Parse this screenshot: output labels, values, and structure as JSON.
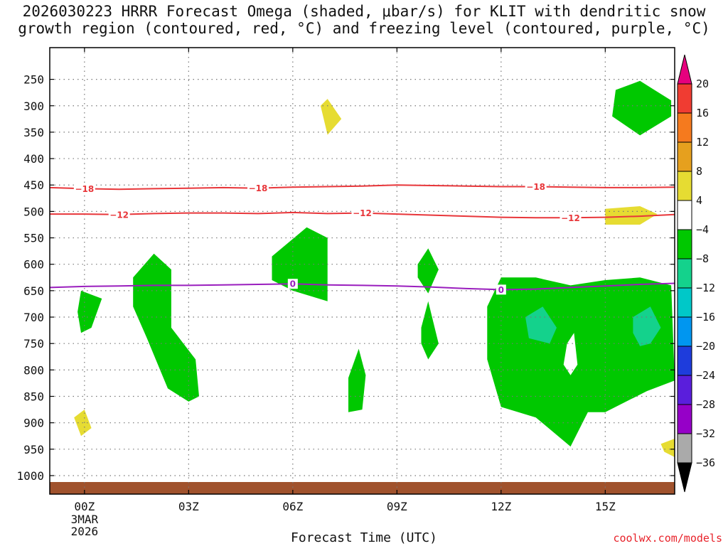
{
  "title_lines": [
    "2026030223 HRRR Forecast Omega (shaded, μbar/s) for KLIT with dendritic snow",
    "growth region (contoured, red, °C) and freezing level (contoured, purple, °C)"
  ],
  "credit": "coolwx.com/models",
  "chart_data": {
    "type": "heatmap",
    "xlabel": "Forecast Time (UTC)",
    "x_range_hours": [
      -1,
      17
    ],
    "x_ticks": [
      {
        "hour": 0,
        "label": "00Z",
        "sublabels": [
          "3MAR",
          "2026"
        ]
      },
      {
        "hour": 3,
        "label": "03Z"
      },
      {
        "hour": 6,
        "label": "06Z"
      },
      {
        "hour": 9,
        "label": "09Z"
      },
      {
        "hour": 12,
        "label": "12Z"
      },
      {
        "hour": 15,
        "label": "15Z"
      }
    ],
    "y_ticks_hpa": [
      250,
      300,
      350,
      400,
      450,
      500,
      550,
      600,
      650,
      700,
      750,
      800,
      850,
      900,
      950,
      1000
    ],
    "y_range_hpa": [
      190,
      1035
    ],
    "grid": true,
    "colorbar": {
      "colors": [
        "#e6007e",
        "#f03c32",
        "#f57a1e",
        "#e6a01e",
        "#e6dc32",
        "#ffffff",
        "#00c800",
        "#14d28c",
        "#00c8c8",
        "#0096f0",
        "#1e3cdc",
        "#5a1edc",
        "#9600c8",
        "#aaaaaa",
        "#000000"
      ],
      "labels": [
        "20",
        "16",
        "12",
        "8",
        "4",
        "−4",
        "−8",
        "−12",
        "−16",
        "−20",
        "−24",
        "−28",
        "−32",
        "−36"
      ]
    },
    "contours": [
      {
        "color": "#e8363a",
        "level_label": "−18",
        "points": [
          [
            -1,
            455
          ],
          [
            0,
            457
          ],
          [
            1,
            458
          ],
          [
            2,
            457
          ],
          [
            3,
            456
          ],
          [
            4,
            455
          ],
          [
            5,
            456
          ],
          [
            6,
            454
          ],
          [
            7,
            453
          ],
          [
            8,
            452
          ],
          [
            9,
            450
          ],
          [
            10,
            451
          ],
          [
            11,
            452
          ],
          [
            12,
            453
          ],
          [
            13,
            453
          ],
          [
            14,
            454
          ],
          [
            15,
            455
          ],
          [
            16,
            455
          ],
          [
            17,
            454
          ]
        ],
        "label_hours": [
          0,
          5,
          13
        ]
      },
      {
        "color": "#e8363a",
        "level_label": "−12",
        "points": [
          [
            -1,
            505
          ],
          [
            0,
            505
          ],
          [
            1,
            506
          ],
          [
            2,
            504
          ],
          [
            3,
            503
          ],
          [
            4,
            503
          ],
          [
            5,
            504
          ],
          [
            6,
            502
          ],
          [
            7,
            504
          ],
          [
            8,
            503
          ],
          [
            9,
            505
          ],
          [
            10,
            507
          ],
          [
            11,
            509
          ],
          [
            12,
            511
          ],
          [
            13,
            512
          ],
          [
            14,
            512
          ],
          [
            15,
            511
          ],
          [
            16,
            509
          ],
          [
            17,
            506
          ]
        ],
        "label_hours": [
          1,
          8,
          14
        ]
      },
      {
        "color": "#9a1ebe",
        "level_label": "0",
        "points": [
          [
            -1,
            644
          ],
          [
            0,
            642
          ],
          [
            1,
            641
          ],
          [
            2,
            640
          ],
          [
            3,
            640
          ],
          [
            4,
            639
          ],
          [
            5,
            638
          ],
          [
            6,
            637
          ],
          [
            7,
            639
          ],
          [
            8,
            640
          ],
          [
            9,
            641
          ],
          [
            10,
            643
          ],
          [
            11,
            646
          ],
          [
            12,
            648
          ],
          [
            13,
            647
          ],
          [
            14,
            644
          ],
          [
            15,
            641
          ],
          [
            16,
            638
          ],
          [
            17,
            636
          ]
        ],
        "label_hours": [
          6,
          12
        ]
      }
    ],
    "shaded_regions": [
      {
        "color": "#e6dc32",
        "points": [
          [
            7.0,
            287
          ],
          [
            7.4,
            325
          ],
          [
            7.0,
            355
          ],
          [
            6.8,
            300
          ]
        ]
      },
      {
        "color": "#00c800",
        "points": [
          [
            16.0,
            253
          ],
          [
            16.9,
            290
          ],
          [
            16.9,
            320
          ],
          [
            16.0,
            356
          ],
          [
            15.2,
            320
          ],
          [
            15.3,
            270
          ]
        ]
      },
      {
        "color": "#e6dc32",
        "points": [
          [
            15.0,
            495
          ],
          [
            16.0,
            490
          ],
          [
            16.5,
            505
          ],
          [
            16.0,
            525
          ],
          [
            15.0,
            525
          ]
        ]
      },
      {
        "color": "#00c800",
        "points": [
          [
            5.4,
            585
          ],
          [
            6.4,
            530
          ],
          [
            7.0,
            550
          ],
          [
            7.0,
            610
          ],
          [
            7.0,
            670
          ],
          [
            6.0,
            650
          ],
          [
            5.4,
            630
          ]
        ]
      },
      {
        "color": "#00c800",
        "points": [
          [
            1.4,
            625
          ],
          [
            2.0,
            580
          ],
          [
            2.5,
            610
          ],
          [
            2.5,
            720
          ],
          [
            3.2,
            780
          ],
          [
            3.3,
            850
          ],
          [
            3.0,
            860
          ],
          [
            2.4,
            835
          ],
          [
            1.8,
            740
          ],
          [
            1.4,
            680
          ]
        ]
      },
      {
        "color": "#00c800",
        "points": [
          [
            -0.2,
            690
          ],
          [
            -0.1,
            650
          ],
          [
            0.5,
            665
          ],
          [
            0.2,
            720
          ],
          [
            -0.1,
            730
          ]
        ]
      },
      {
        "color": "#e6dc32",
        "points": [
          [
            -0.3,
            890
          ],
          [
            0.0,
            875
          ],
          [
            0.2,
            910
          ],
          [
            -0.1,
            925
          ]
        ]
      },
      {
        "color": "#00c800",
        "points": [
          [
            7.6,
            815
          ],
          [
            7.9,
            760
          ],
          [
            8.1,
            810
          ],
          [
            8.0,
            875
          ],
          [
            7.6,
            880
          ]
        ]
      },
      {
        "color": "#00c800",
        "points": [
          [
            9.6,
            600
          ],
          [
            9.9,
            570
          ],
          [
            10.2,
            610
          ],
          [
            9.9,
            655
          ],
          [
            9.6,
            625
          ]
        ]
      },
      {
        "color": "#00c800",
        "points": [
          [
            9.7,
            720
          ],
          [
            9.9,
            670
          ],
          [
            10.2,
            750
          ],
          [
            9.9,
            780
          ],
          [
            9.7,
            750
          ]
        ]
      },
      {
        "color": "#00c800",
        "points": [
          [
            11.6,
            680
          ],
          [
            12.0,
            625
          ],
          [
            13.0,
            625
          ],
          [
            14.0,
            640
          ],
          [
            15.0,
            630
          ],
          [
            16.0,
            625
          ],
          [
            16.9,
            640
          ],
          [
            17.0,
            820
          ],
          [
            16.2,
            840
          ],
          [
            15.0,
            880
          ],
          [
            14.5,
            880
          ],
          [
            14.0,
            945
          ],
          [
            13.0,
            890
          ],
          [
            12.0,
            870
          ],
          [
            11.6,
            780
          ]
        ]
      },
      {
        "color": "#ffffff",
        "points": [
          [
            13.9,
            750
          ],
          [
            14.1,
            730
          ],
          [
            14.2,
            790
          ],
          [
            14.0,
            810
          ],
          [
            13.8,
            790
          ]
        ]
      },
      {
        "color": "#14d28c",
        "points": [
          [
            12.7,
            700
          ],
          [
            13.2,
            680
          ],
          [
            13.6,
            720
          ],
          [
            13.4,
            750
          ],
          [
            12.8,
            740
          ]
        ]
      },
      {
        "color": "#14d28c",
        "points": [
          [
            15.8,
            700
          ],
          [
            16.3,
            680
          ],
          [
            16.6,
            720
          ],
          [
            16.3,
            750
          ],
          [
            16.0,
            755
          ],
          [
            15.8,
            730
          ]
        ]
      },
      {
        "color": "#e6dc32",
        "points": [
          [
            16.6,
            940
          ],
          [
            17.0,
            930
          ],
          [
            17.0,
            965
          ],
          [
            16.7,
            955
          ]
        ]
      }
    ],
    "ground_color": "#a0522d"
  }
}
